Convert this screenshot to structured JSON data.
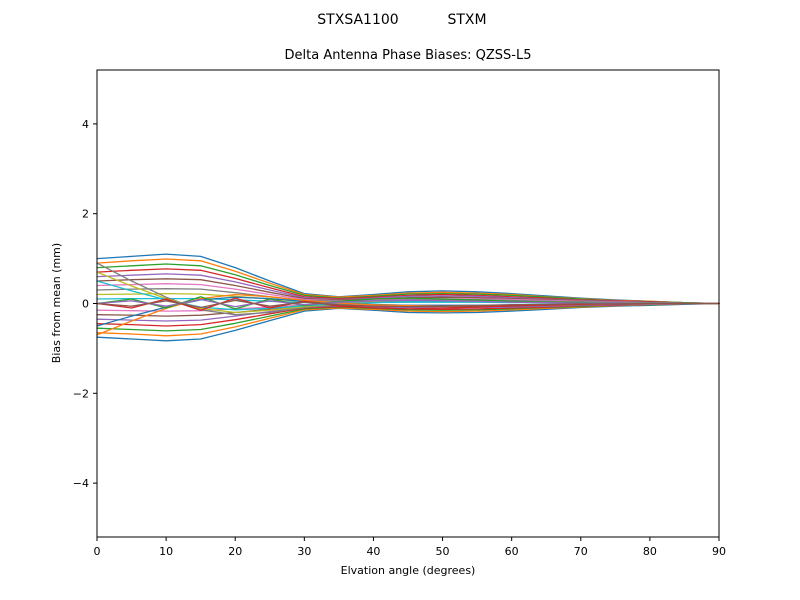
{
  "figure": {
    "title_left": "STXSA1100",
    "title_right": "STXM",
    "axes_title": "Delta Antenna Phase Biases: QZSS-L5"
  },
  "chart_data": {
    "type": "line",
    "title": "Delta Antenna Phase Biases: QZSS-L5",
    "suptitle": "STXSA1100       STXM",
    "xlabel": "Elvation angle (degrees)",
    "ylabel": "Bias from mean (mm)",
    "xlim": [
      0,
      90
    ],
    "ylim": [
      -5.2,
      5.2
    ],
    "x_ticks": [
      0,
      10,
      20,
      30,
      40,
      50,
      60,
      70,
      80,
      90
    ],
    "x_tick_labels": [
      "0",
      "10",
      "20",
      "30",
      "40",
      "50",
      "60",
      "70",
      "80",
      "90"
    ],
    "y_ticks": [
      -4,
      -2,
      0,
      2,
      4
    ],
    "y_tick_labels": [
      "−4",
      "−2",
      "0",
      "2",
      "4"
    ],
    "grid": false,
    "legend": "none",
    "x": [
      0,
      5,
      10,
      15,
      20,
      25,
      30,
      35,
      40,
      45,
      50,
      55,
      60,
      65,
      70,
      75,
      80,
      85,
      90
    ],
    "palette": [
      "#1f77b4",
      "#ff7f0e",
      "#2ca02c",
      "#d62728",
      "#9467bd",
      "#8c564b",
      "#e377c2",
      "#7f7f7f",
      "#bcbd22",
      "#17becf"
    ],
    "series": [
      {
        "values": [
          1.0,
          1.05,
          1.1,
          1.05,
          0.8,
          0.5,
          0.22,
          0.15,
          0.2,
          0.26,
          0.28,
          0.26,
          0.22,
          0.17,
          0.12,
          0.08,
          0.05,
          0.02,
          0.0
        ]
      },
      {
        "values": [
          0.9,
          0.95,
          0.99,
          0.95,
          0.72,
          0.45,
          0.2,
          0.14,
          0.18,
          0.23,
          0.25,
          0.23,
          0.2,
          0.15,
          0.11,
          0.07,
          0.05,
          0.02,
          0.0
        ]
      },
      {
        "values": [
          0.8,
          0.84,
          0.88,
          0.84,
          0.64,
          0.4,
          0.18,
          0.12,
          0.16,
          0.21,
          0.22,
          0.21,
          0.18,
          0.14,
          0.1,
          0.06,
          0.04,
          0.02,
          0.0
        ]
      },
      {
        "values": [
          0.7,
          0.74,
          0.77,
          0.74,
          0.56,
          0.35,
          0.15,
          0.11,
          0.14,
          0.18,
          0.2,
          0.18,
          0.15,
          0.12,
          0.08,
          0.06,
          0.04,
          0.01,
          0.0
        ]
      },
      {
        "values": [
          0.6,
          0.63,
          0.66,
          0.63,
          0.48,
          0.3,
          0.13,
          0.09,
          0.12,
          0.16,
          0.17,
          0.16,
          0.13,
          0.1,
          0.07,
          0.05,
          0.03,
          0.01,
          0.0
        ]
      },
      {
        "values": [
          0.5,
          0.53,
          0.55,
          0.53,
          0.4,
          0.25,
          0.11,
          0.08,
          0.1,
          0.13,
          0.14,
          0.13,
          0.11,
          0.09,
          0.06,
          0.04,
          0.03,
          0.01,
          0.0
        ]
      },
      {
        "values": [
          0.4,
          0.42,
          0.44,
          0.42,
          0.32,
          0.2,
          0.09,
          0.06,
          0.08,
          0.1,
          0.11,
          0.1,
          0.09,
          0.07,
          0.05,
          0.03,
          0.02,
          0.01,
          0.0
        ]
      },
      {
        "values": [
          0.3,
          0.32,
          0.33,
          0.32,
          0.24,
          0.15,
          0.07,
          0.05,
          0.06,
          0.08,
          0.08,
          0.08,
          0.07,
          0.05,
          0.04,
          0.02,
          0.02,
          0.01,
          0.0
        ]
      },
      {
        "values": [
          0.2,
          0.21,
          0.22,
          0.21,
          0.16,
          0.1,
          0.04,
          0.03,
          0.04,
          0.05,
          0.06,
          0.05,
          0.04,
          0.03,
          0.02,
          0.02,
          0.01,
          0.0,
          0.0
        ]
      },
      {
        "values": [
          0.1,
          0.11,
          0.11,
          0.11,
          0.08,
          0.05,
          0.02,
          0.02,
          0.02,
          0.03,
          0.03,
          0.03,
          0.02,
          0.02,
          0.01,
          0.01,
          0.01,
          0.0,
          0.0
        ]
      },
      {
        "values": [
          -0.75,
          -0.79,
          -0.83,
          -0.79,
          -0.6,
          -0.38,
          -0.17,
          -0.11,
          -0.15,
          -0.2,
          -0.21,
          -0.2,
          -0.17,
          -0.13,
          -0.09,
          -0.06,
          -0.04,
          -0.02,
          0.0
        ]
      },
      {
        "values": [
          -0.65,
          -0.68,
          -0.72,
          -0.68,
          -0.52,
          -0.33,
          -0.14,
          -0.1,
          -0.13,
          -0.17,
          -0.18,
          -0.17,
          -0.14,
          -0.11,
          -0.08,
          -0.05,
          -0.03,
          -0.01,
          0.0
        ]
      },
      {
        "values": [
          -0.55,
          -0.58,
          -0.61,
          -0.58,
          -0.44,
          -0.28,
          -0.12,
          -0.08,
          -0.11,
          -0.14,
          -0.15,
          -0.14,
          -0.12,
          -0.09,
          -0.07,
          -0.04,
          -0.03,
          -0.01,
          0.0
        ]
      },
      {
        "values": [
          -0.45,
          -0.47,
          -0.5,
          -0.47,
          -0.36,
          -0.23,
          -0.1,
          -0.07,
          -0.09,
          -0.12,
          -0.13,
          -0.12,
          -0.1,
          -0.08,
          -0.05,
          -0.04,
          -0.02,
          -0.01,
          0.0
        ]
      },
      {
        "values": [
          -0.35,
          -0.37,
          -0.39,
          -0.37,
          -0.28,
          -0.18,
          -0.08,
          -0.05,
          -0.07,
          -0.09,
          -0.1,
          -0.09,
          -0.08,
          -0.06,
          -0.04,
          -0.03,
          -0.02,
          -0.01,
          0.0
        ]
      },
      {
        "values": [
          -0.25,
          -0.26,
          -0.28,
          -0.26,
          -0.2,
          -0.13,
          -0.06,
          -0.04,
          -0.05,
          -0.07,
          -0.07,
          -0.07,
          -0.06,
          -0.04,
          -0.03,
          -0.02,
          -0.01,
          -0.01,
          0.0
        ]
      },
      {
        "values": [
          -0.15,
          -0.16,
          -0.17,
          -0.16,
          -0.12,
          -0.08,
          -0.03,
          -0.02,
          -0.03,
          -0.04,
          -0.04,
          -0.04,
          -0.03,
          -0.03,
          -0.02,
          -0.01,
          -0.01,
          0.0,
          0.0
        ]
      },
      {
        "values": [
          0.9,
          0.5,
          0.14,
          -0.14,
          -0.25,
          -0.2,
          -0.09,
          -0.02,
          0.04,
          0.06,
          0.07,
          0.06,
          0.05,
          0.04,
          0.03,
          0.02,
          0.01,
          0.0,
          0.0
        ]
      },
      {
        "values": [
          0.7,
          0.39,
          0.11,
          -0.11,
          -0.2,
          -0.15,
          -0.07,
          -0.01,
          0.03,
          0.05,
          0.06,
          0.05,
          0.04,
          0.03,
          0.02,
          0.01,
          0.01,
          0.0,
          0.0
        ]
      },
      {
        "values": [
          0.5,
          0.28,
          0.08,
          -0.08,
          -0.14,
          -0.11,
          -0.05,
          -0.01,
          0.02,
          0.04,
          0.04,
          0.04,
          0.03,
          0.02,
          0.02,
          0.01,
          0.01,
          0.0,
          0.0
        ]
      },
      {
        "values": [
          -0.5,
          -0.28,
          -0.08,
          0.08,
          0.14,
          0.11,
          0.05,
          0.01,
          -0.02,
          -0.04,
          -0.04,
          -0.04,
          -0.03,
          -0.02,
          -0.02,
          -0.01,
          -0.01,
          0.0,
          0.0
        ]
      },
      {
        "values": [
          -0.7,
          -0.39,
          -0.11,
          0.11,
          0.2,
          0.15,
          0.07,
          0.01,
          -0.03,
          -0.05,
          -0.06,
          -0.05,
          -0.04,
          -0.03,
          -0.02,
          -0.01,
          -0.01,
          0.0,
          0.0
        ]
      },
      {
        "values": [
          0.0,
          0.1,
          -0.1,
          0.15,
          -0.12,
          0.1,
          -0.05,
          0.05,
          0.1,
          0.12,
          0.1,
          0.08,
          0.05,
          0.03,
          0.02,
          0.01,
          0.0,
          0.0,
          0.0
        ]
      },
      {
        "values": [
          0.0,
          -0.1,
          0.1,
          -0.15,
          0.12,
          -0.1,
          0.05,
          -0.05,
          -0.1,
          -0.12,
          -0.1,
          -0.08,
          -0.05,
          -0.03,
          -0.02,
          -0.01,
          0.0,
          0.0,
          0.0
        ]
      },
      {
        "values": [
          0.0,
          0.06,
          -0.06,
          0.09,
          -0.07,
          0.06,
          -0.03,
          0.03,
          0.06,
          0.07,
          0.06,
          0.05,
          0.03,
          0.02,
          0.01,
          0.01,
          0.0,
          0.0,
          0.0
        ]
      },
      {
        "values": [
          0.0,
          -0.06,
          0.06,
          -0.09,
          0.07,
          -0.06,
          0.03,
          -0.03,
          -0.06,
          -0.07,
          -0.06,
          -0.05,
          -0.03,
          -0.02,
          -0.01,
          -0.01,
          0.0,
          0.0,
          0.0
        ]
      }
    ]
  }
}
